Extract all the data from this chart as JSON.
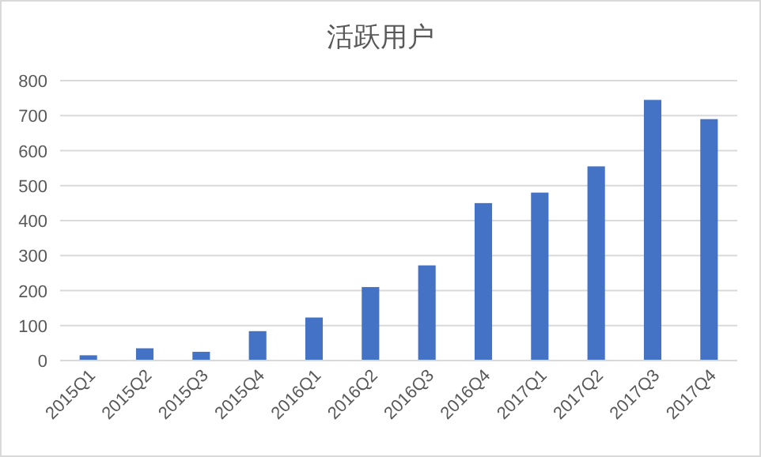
{
  "chart_data": {
    "type": "bar",
    "title": "活跃用户",
    "categories": [
      "2015Q1",
      "2015Q2",
      "2015Q3",
      "2015Q4",
      "2016Q1",
      "2016Q2",
      "2016Q3",
      "2016Q4",
      "2017Q1",
      "2017Q2",
      "2017Q3",
      "2017Q4"
    ],
    "values": [
      15,
      35,
      25,
      84,
      123,
      210,
      272,
      450,
      480,
      555,
      745,
      690
    ],
    "color": "#4472c4",
    "ylim": [
      0,
      800
    ],
    "yticks": [
      0,
      100,
      200,
      300,
      400,
      500,
      600,
      700,
      800
    ],
    "grid": "y"
  }
}
